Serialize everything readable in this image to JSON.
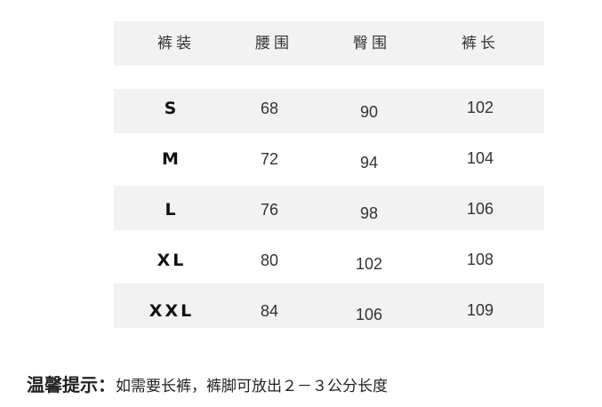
{
  "table": {
    "headers": [
      "裤装",
      "腰围",
      "臀围",
      "裤长"
    ],
    "rows": [
      {
        "size": "S",
        "waist": "68",
        "hip": "90",
        "length": "102"
      },
      {
        "size": "M",
        "waist": "72",
        "hip": "94",
        "length": "104"
      },
      {
        "size": "L",
        "waist": "76",
        "hip": "98",
        "length": "106"
      },
      {
        "size": "XL",
        "waist": "80",
        "hip": "102",
        "length": "108"
      },
      {
        "size": "XXL",
        "waist": "84",
        "hip": "106",
        "length": "109"
      }
    ]
  },
  "note": {
    "label": "温馨提示：",
    "text": "如需要长裤，裤脚可放出２－３公分长度"
  }
}
